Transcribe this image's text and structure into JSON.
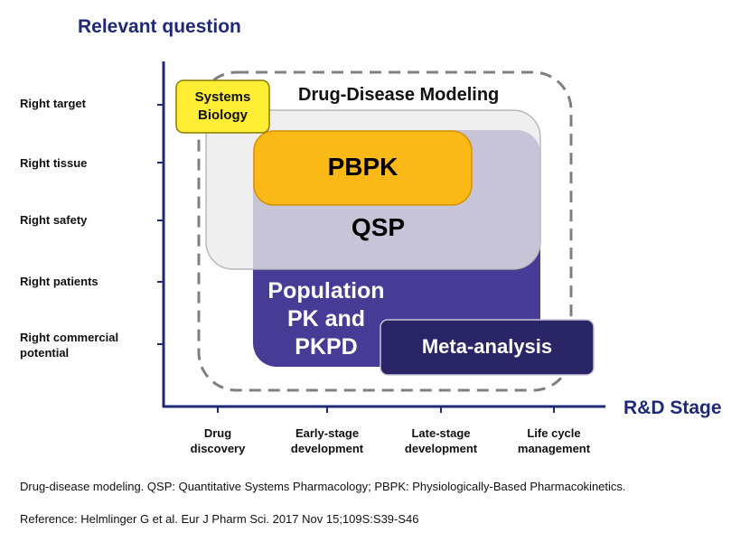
{
  "y_axis_title": "Relevant question",
  "x_axis_title": "R&D Stage",
  "y_labels": [
    "Right target",
    "Right tissue",
    "Right safety",
    "Right patients",
    "Right commercial\npotential"
  ],
  "x_labels": [
    "Drug\ndiscovery",
    "Early-stage\ndevelopment",
    "Late-stage\ndevelopment",
    "Life cycle\nmanagement"
  ],
  "boxes": {
    "drug_disease": "Drug-Disease Modeling",
    "systems_biology": "Systems\nBiology",
    "pbpk": "PBPK",
    "qsp": "QSP",
    "poppk": "Population\nPK and\nPKPD",
    "meta": "Meta-analysis"
  },
  "colors": {
    "navy": "#1e2a78",
    "yellow": "#ffee33",
    "orange": "#fbb917",
    "purple": "#463c95",
    "dark_navy": "#2a2567",
    "light_gray": "#efefef",
    "lavender": "#c8c4d8"
  },
  "captions": {
    "description": "Drug-disease modeling. QSP: Quantitative Systems Pharmacology; PBPK: Physiologically-Based Pharmacokinetics.",
    "reference": "Reference: Helmlinger G et al. Eur J Pharm Sci. 2017 Nov 15;109S:S39-S46"
  }
}
